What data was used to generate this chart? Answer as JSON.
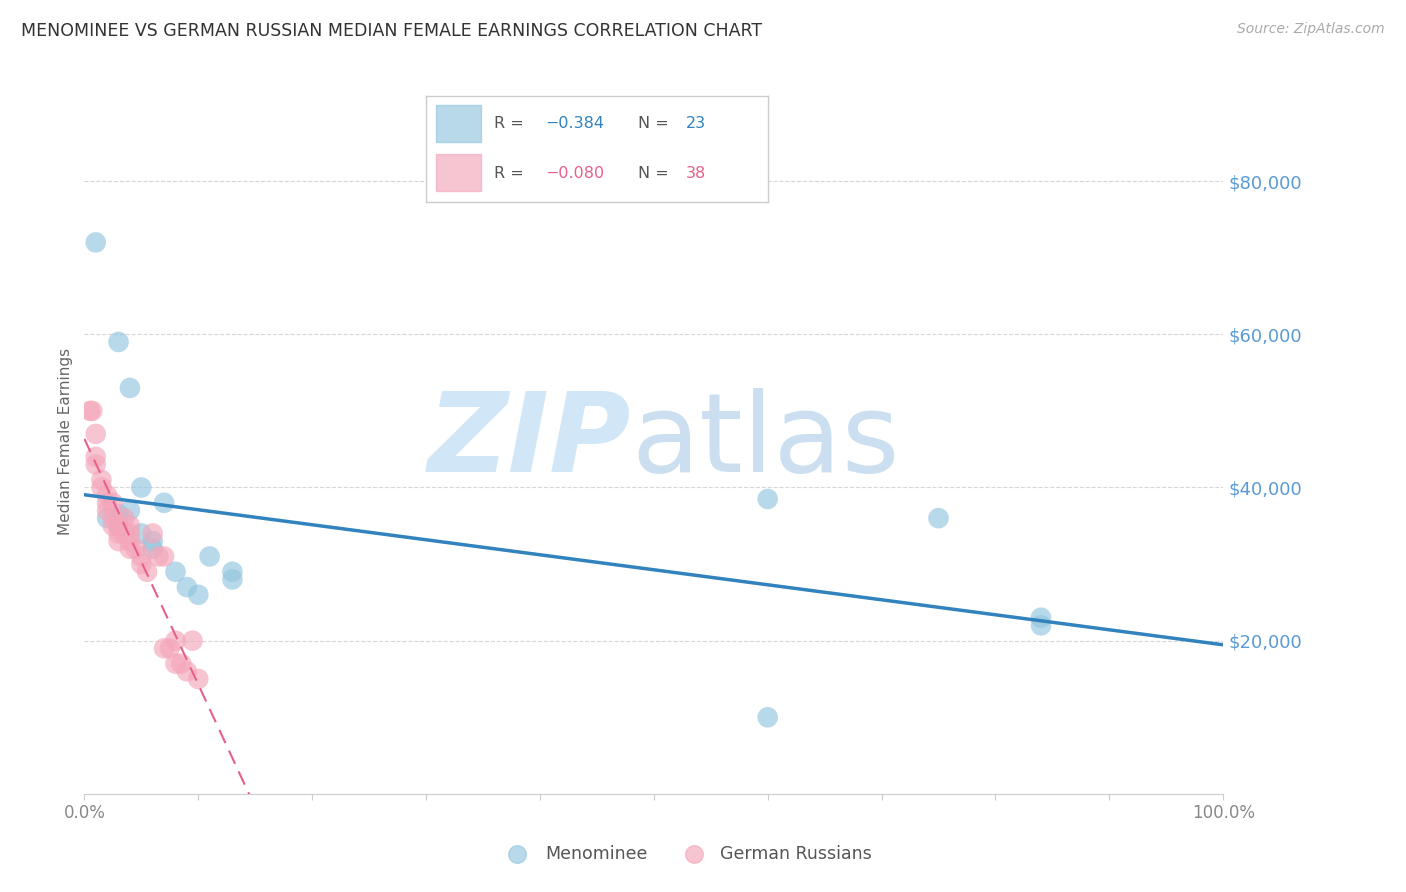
{
  "title": "MENOMINEE VS GERMAN RUSSIAN MEDIAN FEMALE EARNINGS CORRELATION CHART",
  "source": "Source: ZipAtlas.com",
  "ylabel": "Median Female Earnings",
  "xlim": [
    0.0,
    1.0
  ],
  "ylim": [
    0,
    92000
  ],
  "yticks": [
    20000,
    40000,
    60000,
    80000
  ],
  "ytick_labels": [
    "$20,000",
    "$40,000",
    "$60,000",
    "$80,000"
  ],
  "xtick_labels": [
    "0.0%",
    "",
    "",
    "",
    "",
    "",
    "",
    "",
    "",
    "",
    "100.0%"
  ],
  "menominee_color": "#92c5de",
  "german_color": "#f4a6ba",
  "trend_menominee_color": "#3182bd",
  "trend_german_color": "#e8608a",
  "background_color": "#ffffff",
  "grid_color": "#cccccc",
  "title_color": "#333333",
  "axis_label_color": "#666666",
  "tick_color_right": "#5b9bd5",
  "menominee_x": [
    0.01,
    0.03,
    0.04,
    0.05,
    0.07,
    0.02,
    0.03,
    0.05,
    0.06,
    0.08,
    0.1,
    0.13,
    0.6,
    0.75,
    0.84,
    0.84,
    0.6
  ],
  "menominee_y": [
    72000,
    59000,
    53000,
    40000,
    38000,
    36000,
    35000,
    34000,
    33000,
    29000,
    26000,
    29000,
    38500,
    36000,
    22000,
    23000,
    10000
  ],
  "german_x": [
    0.005,
    0.007,
    0.01,
    0.01,
    0.01,
    0.015,
    0.015,
    0.02,
    0.02,
    0.02,
    0.025,
    0.025,
    0.025,
    0.03,
    0.03,
    0.03,
    0.03,
    0.035,
    0.035,
    0.04,
    0.04,
    0.04,
    0.04,
    0.045,
    0.05,
    0.05,
    0.055,
    0.06,
    0.065,
    0.07,
    0.07,
    0.075,
    0.08,
    0.08,
    0.085,
    0.09,
    0.095,
    0.1
  ],
  "german_y": [
    50000,
    50000,
    47000,
    44000,
    43000,
    41000,
    40000,
    39000,
    38000,
    37000,
    38000,
    36000,
    35000,
    35000,
    35000,
    34000,
    33000,
    36000,
    34000,
    35000,
    34000,
    33000,
    32000,
    32000,
    31000,
    30000,
    29000,
    34000,
    31000,
    31000,
    19000,
    19000,
    20000,
    17000,
    17000,
    16000,
    20000,
    15000
  ],
  "watermark_zip_color": "#cce4f5",
  "watermark_atlas_color": "#c0d8ee"
}
